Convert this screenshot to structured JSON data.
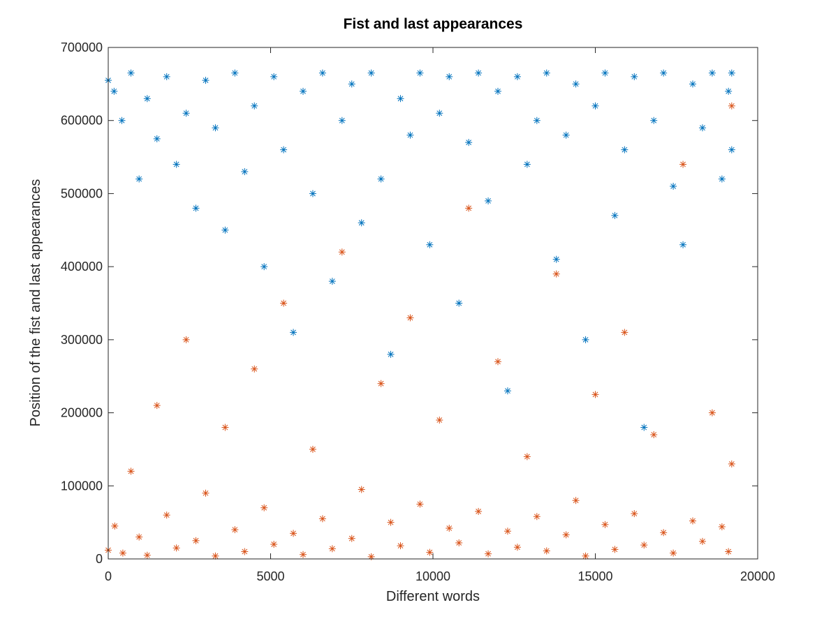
{
  "chart_data": {
    "type": "scatter",
    "title": "Fist and last appearances",
    "xlabel": "Different words",
    "ylabel": "Position of the fist and last appearances",
    "xlim": [
      0,
      20000
    ],
    "ylim": [
      0,
      700000
    ],
    "xticks": [
      0,
      5000,
      10000,
      15000,
      20000
    ],
    "xtick_labels": [
      "0",
      "5000",
      "10000",
      "15000",
      "20000"
    ],
    "yticks": [
      0,
      100000,
      200000,
      300000,
      400000,
      500000,
      600000,
      700000
    ],
    "ytick_labels": [
      "0",
      "100000",
      "200000",
      "300000",
      "400000",
      "500000",
      "600000",
      "700000"
    ],
    "grid": false,
    "legend": "none",
    "marker": "asterisk",
    "series": [
      {
        "color": "#0072BD",
        "points": [
          [
            0,
            655000
          ],
          [
            180,
            640000
          ],
          [
            420,
            600000
          ],
          [
            700,
            665000
          ],
          [
            950,
            520000
          ],
          [
            1200,
            630000
          ],
          [
            1500,
            575000
          ],
          [
            1800,
            660000
          ],
          [
            2100,
            540000
          ],
          [
            2400,
            610000
          ],
          [
            2700,
            480000
          ],
          [
            3000,
            655000
          ],
          [
            3300,
            590000
          ],
          [
            3600,
            450000
          ],
          [
            3900,
            665000
          ],
          [
            4200,
            530000
          ],
          [
            4500,
            620000
          ],
          [
            4800,
            400000
          ],
          [
            5100,
            660000
          ],
          [
            5400,
            560000
          ],
          [
            5700,
            310000
          ],
          [
            6000,
            640000
          ],
          [
            6300,
            500000
          ],
          [
            6600,
            665000
          ],
          [
            6900,
            380000
          ],
          [
            7200,
            600000
          ],
          [
            7500,
            650000
          ],
          [
            7800,
            460000
          ],
          [
            8100,
            665000
          ],
          [
            8400,
            520000
          ],
          [
            8700,
            280000
          ],
          [
            9000,
            630000
          ],
          [
            9300,
            580000
          ],
          [
            9600,
            665000
          ],
          [
            9900,
            430000
          ],
          [
            10200,
            610000
          ],
          [
            10500,
            660000
          ],
          [
            10800,
            350000
          ],
          [
            11100,
            570000
          ],
          [
            11400,
            665000
          ],
          [
            11700,
            490000
          ],
          [
            12000,
            640000
          ],
          [
            12300,
            230000
          ],
          [
            12600,
            660000
          ],
          [
            12900,
            540000
          ],
          [
            13200,
            600000
          ],
          [
            13500,
            665000
          ],
          [
            13800,
            410000
          ],
          [
            14100,
            580000
          ],
          [
            14400,
            650000
          ],
          [
            14700,
            300000
          ],
          [
            15000,
            620000
          ],
          [
            15300,
            665000
          ],
          [
            15600,
            470000
          ],
          [
            15900,
            560000
          ],
          [
            16200,
            660000
          ],
          [
            16500,
            180000
          ],
          [
            16800,
            600000
          ],
          [
            17100,
            665000
          ],
          [
            17400,
            510000
          ],
          [
            17700,
            430000
          ],
          [
            18000,
            650000
          ],
          [
            18300,
            590000
          ],
          [
            18600,
            665000
          ],
          [
            18900,
            520000
          ],
          [
            19100,
            640000
          ],
          [
            19200,
            560000
          ],
          [
            19200,
            665000
          ]
        ]
      },
      {
        "color": "#D95319",
        "points": [
          [
            0,
            12000
          ],
          [
            200,
            45000
          ],
          [
            450,
            8000
          ],
          [
            700,
            120000
          ],
          [
            950,
            30000
          ],
          [
            1200,
            5000
          ],
          [
            1500,
            210000
          ],
          [
            1800,
            60000
          ],
          [
            2100,
            15000
          ],
          [
            2400,
            300000
          ],
          [
            2700,
            25000
          ],
          [
            3000,
            90000
          ],
          [
            3300,
            4000
          ],
          [
            3600,
            180000
          ],
          [
            3900,
            40000
          ],
          [
            4200,
            10000
          ],
          [
            4500,
            260000
          ],
          [
            4800,
            70000
          ],
          [
            5100,
            20000
          ],
          [
            5400,
            350000
          ],
          [
            5700,
            35000
          ],
          [
            6000,
            6000
          ],
          [
            6300,
            150000
          ],
          [
            6600,
            55000
          ],
          [
            6900,
            14000
          ],
          [
            7200,
            420000
          ],
          [
            7500,
            28000
          ],
          [
            7800,
            95000
          ],
          [
            8100,
            3000
          ],
          [
            8400,
            240000
          ],
          [
            8700,
            50000
          ],
          [
            9000,
            18000
          ],
          [
            9300,
            330000
          ],
          [
            9600,
            75000
          ],
          [
            9900,
            9000
          ],
          [
            10200,
            190000
          ],
          [
            10500,
            42000
          ],
          [
            10800,
            22000
          ],
          [
            11100,
            480000
          ],
          [
            11400,
            65000
          ],
          [
            11700,
            7000
          ],
          [
            12000,
            270000
          ],
          [
            12300,
            38000
          ],
          [
            12600,
            16000
          ],
          [
            12900,
            140000
          ],
          [
            13200,
            58000
          ],
          [
            13500,
            11000
          ],
          [
            13800,
            390000
          ],
          [
            14100,
            33000
          ],
          [
            14400,
            80000
          ],
          [
            14700,
            4000
          ],
          [
            15000,
            225000
          ],
          [
            15300,
            47000
          ],
          [
            15600,
            13000
          ],
          [
            15900,
            310000
          ],
          [
            16200,
            62000
          ],
          [
            16500,
            19000
          ],
          [
            16800,
            170000
          ],
          [
            17100,
            36000
          ],
          [
            17400,
            8000
          ],
          [
            17700,
            540000
          ],
          [
            18000,
            52000
          ],
          [
            18300,
            24000
          ],
          [
            18600,
            200000
          ],
          [
            18900,
            44000
          ],
          [
            19100,
            10000
          ],
          [
            19200,
            130000
          ],
          [
            19200,
            620000
          ]
        ]
      }
    ]
  }
}
